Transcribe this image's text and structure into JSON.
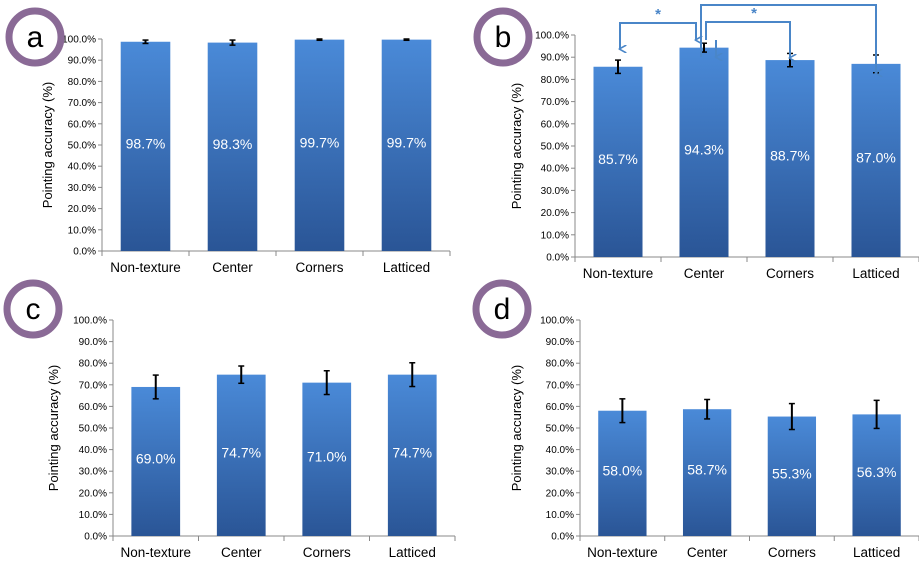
{
  "colors": {
    "bar_top": "#4a8ad8",
    "bar_bottom": "#2a5596",
    "badge_ring": "#8a6a96",
    "bracket": "#4a86c8",
    "error_bar": "#000000",
    "axis": "#888888",
    "value_label": "#ffffff"
  },
  "chart_data": [
    {
      "type": "bar",
      "panel_label": "a",
      "categories": [
        "Non-texture",
        "Center",
        "Corners",
        "Latticed"
      ],
      "values": [
        98.7,
        98.3,
        99.7,
        99.7
      ],
      "errors": [
        0.8,
        1.2,
        0.3,
        0.3
      ],
      "value_labels": [
        "98.7%",
        "98.3%",
        "99.7%",
        "99.7%"
      ],
      "ylabel": "Pointing accuracy (%)",
      "ylim": [
        0,
        100
      ],
      "yticks": [
        "0.0%",
        "10.0%",
        "20.0%",
        "30.0%",
        "40.0%",
        "50.0%",
        "60.0%",
        "70.0%",
        "80.0%",
        "90.0%",
        "100.0%"
      ],
      "significance": []
    },
    {
      "type": "bar",
      "panel_label": "b",
      "categories": [
        "Non-texture",
        "Center",
        "Corners",
        "Latticed"
      ],
      "values": [
        85.7,
        94.3,
        88.7,
        87.0
      ],
      "errors": [
        3.0,
        2.0,
        3.0,
        4.0
      ],
      "value_labels": [
        "85.7%",
        "94.3%",
        "88.7%",
        "87.0%"
      ],
      "ylabel": "Pointing accuracy (%)",
      "ylim": [
        0,
        100
      ],
      "yticks": [
        "0.0%",
        "10.0%",
        "20.0%",
        "30.0%",
        "40.0%",
        "50.0%",
        "60.0%",
        "70.0%",
        "80.0%",
        "90.0%",
        "100.0%"
      ],
      "significance": [
        {
          "from": 0,
          "to": 1,
          "label": "*"
        },
        {
          "from": 1,
          "to": 2,
          "label": "*"
        },
        {
          "from": 1,
          "to": 3,
          "label": ""
        }
      ]
    },
    {
      "type": "bar",
      "panel_label": "c",
      "categories": [
        "Non-texture",
        "Center",
        "Corners",
        "Latticed"
      ],
      "values": [
        69.0,
        74.7,
        71.0,
        74.7
      ],
      "errors": [
        5.5,
        4.0,
        5.5,
        5.5
      ],
      "value_labels": [
        "69.0%",
        "74.7%",
        "71.0%",
        "74.7%"
      ],
      "ylabel": "Pointing accuracy (%)",
      "ylim": [
        0,
        100
      ],
      "yticks": [
        "0.0%",
        "10.0%",
        "20.0%",
        "30.0%",
        "40.0%",
        "50.0%",
        "60.0%",
        "70.0%",
        "80.0%",
        "90.0%",
        "100.0%"
      ],
      "significance": []
    },
    {
      "type": "bar",
      "panel_label": "d",
      "categories": [
        "Non-texture",
        "Center",
        "Corners",
        "Latticed"
      ],
      "values": [
        58.0,
        58.7,
        55.3,
        56.3
      ],
      "errors": [
        5.5,
        4.5,
        6.0,
        6.5
      ],
      "value_labels": [
        "58.0%",
        "58.7%",
        "55.3%",
        "56.3%"
      ],
      "ylabel": "Pointing accuracy (%)",
      "ylim": [
        0,
        100
      ],
      "yticks": [
        "0.0%",
        "10.0%",
        "20.0%",
        "30.0%",
        "40.0%",
        "50.0%",
        "60.0%",
        "70.0%",
        "80.0%",
        "90.0%",
        "100.0%"
      ],
      "significance": []
    }
  ]
}
